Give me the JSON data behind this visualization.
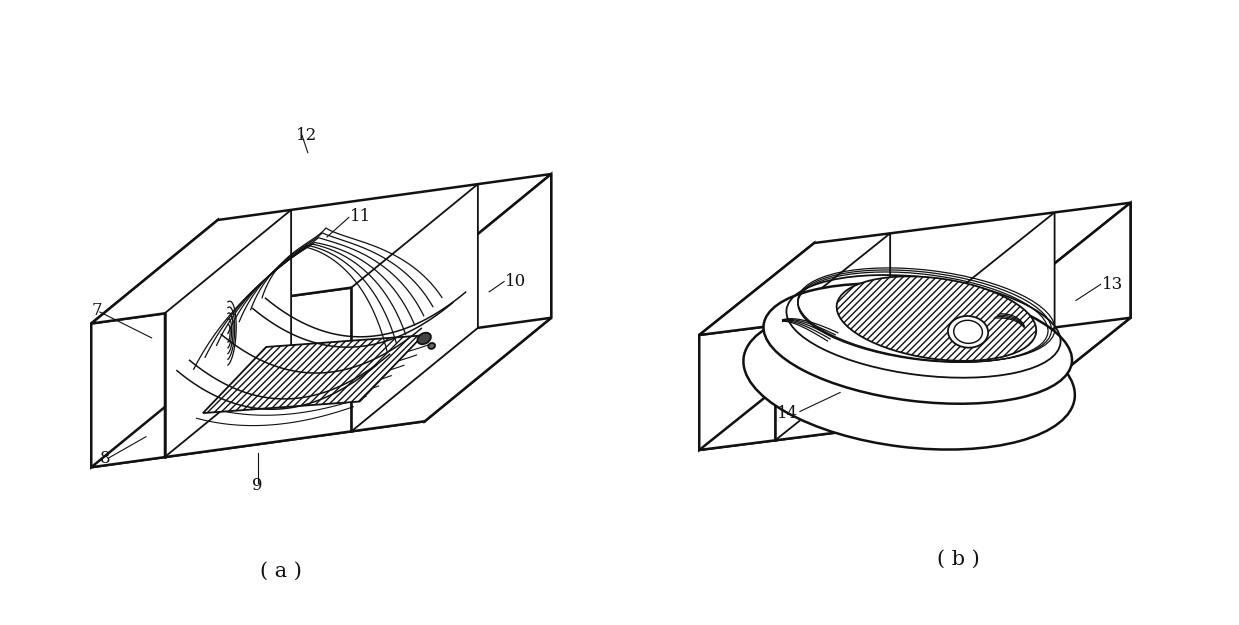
{
  "bg_color": "#ffffff",
  "line_color": "#111111",
  "figsize": [
    12.39,
    6.25
  ],
  "dpi": 100,
  "label_a": "( a )",
  "label_b": "( b )"
}
